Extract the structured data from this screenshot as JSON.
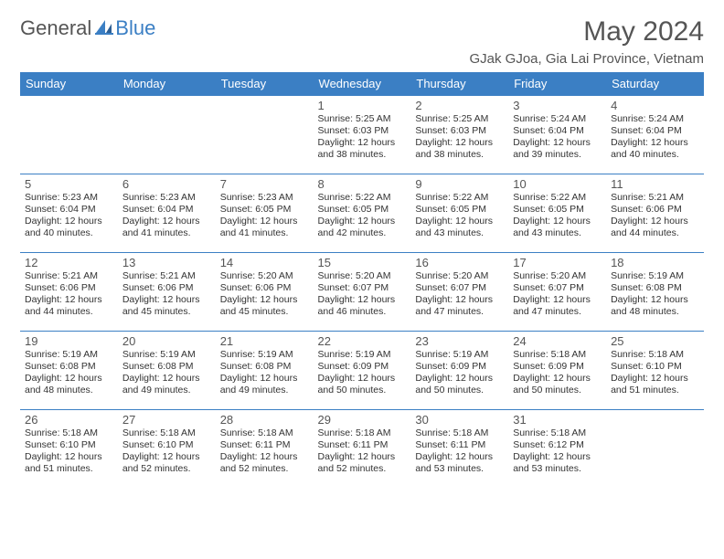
{
  "logo": {
    "text_a": "General",
    "text_b": "Blue"
  },
  "title": "May 2024",
  "location": "GJak GJoa, Gia Lai Province, Vietnam",
  "colors": {
    "header_bg": "#3b7fc4",
    "header_text": "#ffffff",
    "border": "#3b7fc4",
    "text": "#333333",
    "muted": "#555555",
    "background": "#ffffff"
  },
  "table": {
    "columns": [
      "Sunday",
      "Monday",
      "Tuesday",
      "Wednesday",
      "Thursday",
      "Friday",
      "Saturday"
    ],
    "rows": [
      [
        null,
        null,
        null,
        {
          "d": "1",
          "sr": "5:25 AM",
          "ss": "6:03 PM",
          "dl": "12 hours and 38 minutes."
        },
        {
          "d": "2",
          "sr": "5:25 AM",
          "ss": "6:03 PM",
          "dl": "12 hours and 38 minutes."
        },
        {
          "d": "3",
          "sr": "5:24 AM",
          "ss": "6:04 PM",
          "dl": "12 hours and 39 minutes."
        },
        {
          "d": "4",
          "sr": "5:24 AM",
          "ss": "6:04 PM",
          "dl": "12 hours and 40 minutes."
        }
      ],
      [
        {
          "d": "5",
          "sr": "5:23 AM",
          "ss": "6:04 PM",
          "dl": "12 hours and 40 minutes."
        },
        {
          "d": "6",
          "sr": "5:23 AM",
          "ss": "6:04 PM",
          "dl": "12 hours and 41 minutes."
        },
        {
          "d": "7",
          "sr": "5:23 AM",
          "ss": "6:05 PM",
          "dl": "12 hours and 41 minutes."
        },
        {
          "d": "8",
          "sr": "5:22 AM",
          "ss": "6:05 PM",
          "dl": "12 hours and 42 minutes."
        },
        {
          "d": "9",
          "sr": "5:22 AM",
          "ss": "6:05 PM",
          "dl": "12 hours and 43 minutes."
        },
        {
          "d": "10",
          "sr": "5:22 AM",
          "ss": "6:05 PM",
          "dl": "12 hours and 43 minutes."
        },
        {
          "d": "11",
          "sr": "5:21 AM",
          "ss": "6:06 PM",
          "dl": "12 hours and 44 minutes."
        }
      ],
      [
        {
          "d": "12",
          "sr": "5:21 AM",
          "ss": "6:06 PM",
          "dl": "12 hours and 44 minutes."
        },
        {
          "d": "13",
          "sr": "5:21 AM",
          "ss": "6:06 PM",
          "dl": "12 hours and 45 minutes."
        },
        {
          "d": "14",
          "sr": "5:20 AM",
          "ss": "6:06 PM",
          "dl": "12 hours and 45 minutes."
        },
        {
          "d": "15",
          "sr": "5:20 AM",
          "ss": "6:07 PM",
          "dl": "12 hours and 46 minutes."
        },
        {
          "d": "16",
          "sr": "5:20 AM",
          "ss": "6:07 PM",
          "dl": "12 hours and 47 minutes."
        },
        {
          "d": "17",
          "sr": "5:20 AM",
          "ss": "6:07 PM",
          "dl": "12 hours and 47 minutes."
        },
        {
          "d": "18",
          "sr": "5:19 AM",
          "ss": "6:08 PM",
          "dl": "12 hours and 48 minutes."
        }
      ],
      [
        {
          "d": "19",
          "sr": "5:19 AM",
          "ss": "6:08 PM",
          "dl": "12 hours and 48 minutes."
        },
        {
          "d": "20",
          "sr": "5:19 AM",
          "ss": "6:08 PM",
          "dl": "12 hours and 49 minutes."
        },
        {
          "d": "21",
          "sr": "5:19 AM",
          "ss": "6:08 PM",
          "dl": "12 hours and 49 minutes."
        },
        {
          "d": "22",
          "sr": "5:19 AM",
          "ss": "6:09 PM",
          "dl": "12 hours and 50 minutes."
        },
        {
          "d": "23",
          "sr": "5:19 AM",
          "ss": "6:09 PM",
          "dl": "12 hours and 50 minutes."
        },
        {
          "d": "24",
          "sr": "5:18 AM",
          "ss": "6:09 PM",
          "dl": "12 hours and 50 minutes."
        },
        {
          "d": "25",
          "sr": "5:18 AM",
          "ss": "6:10 PM",
          "dl": "12 hours and 51 minutes."
        }
      ],
      [
        {
          "d": "26",
          "sr": "5:18 AM",
          "ss": "6:10 PM",
          "dl": "12 hours and 51 minutes."
        },
        {
          "d": "27",
          "sr": "5:18 AM",
          "ss": "6:10 PM",
          "dl": "12 hours and 52 minutes."
        },
        {
          "d": "28",
          "sr": "5:18 AM",
          "ss": "6:11 PM",
          "dl": "12 hours and 52 minutes."
        },
        {
          "d": "29",
          "sr": "5:18 AM",
          "ss": "6:11 PM",
          "dl": "12 hours and 52 minutes."
        },
        {
          "d": "30",
          "sr": "5:18 AM",
          "ss": "6:11 PM",
          "dl": "12 hours and 53 minutes."
        },
        {
          "d": "31",
          "sr": "5:18 AM",
          "ss": "6:12 PM",
          "dl": "12 hours and 53 minutes."
        },
        null
      ]
    ],
    "labels": {
      "sunrise": "Sunrise:",
      "sunset": "Sunset:",
      "daylight": "Daylight:"
    }
  }
}
